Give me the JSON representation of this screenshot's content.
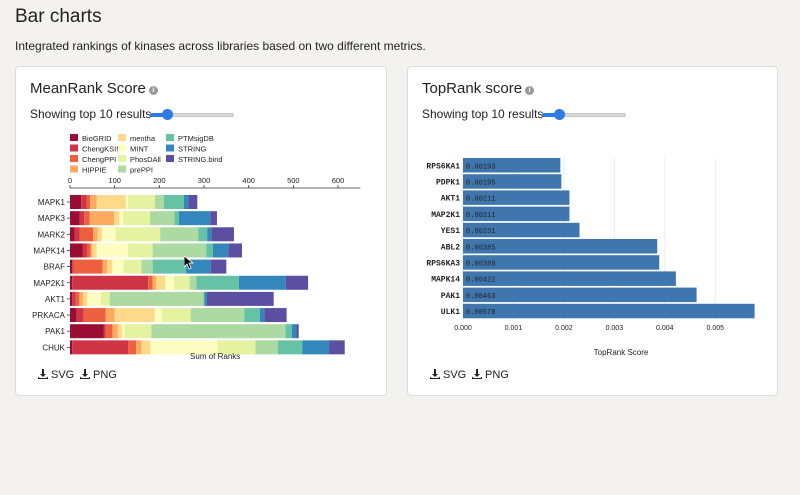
{
  "page": {
    "title": "Bar charts",
    "subtitle": "Integrated rankings of kinases across libraries based on two different metrics."
  },
  "left_card": {
    "title": "MeanRank Score",
    "results_text": "Showing top 10 results",
    "slider_value": 10,
    "download_svg": "SVG",
    "download_png": "PNG"
  },
  "right_card": {
    "title": "TopRank score",
    "results_text": "Showing top 10 results",
    "slider_value": 10,
    "download_svg": "SVG",
    "download_png": "PNG"
  },
  "chart_data": [
    {
      "type": "bar",
      "orientation": "horizontal",
      "stacked": true,
      "xlabel": "Sum of Ranks",
      "xlim": [
        0,
        650
      ],
      "xticks": [
        0,
        100,
        200,
        300,
        400,
        500,
        600
      ],
      "categories": [
        "MAPK1",
        "MAPK3",
        "MARK2",
        "MAPK14",
        "BRAF",
        "MAP2K1",
        "AKT1",
        "PRKACA",
        "PAK1",
        "CHUK"
      ],
      "legend_position": "top-left",
      "series": [
        {
          "name": "BioGRID",
          "color": "#9b0c35",
          "values": [
            25,
            22,
            10,
            28,
            5,
            5,
            5,
            15,
            75,
            5
          ]
        },
        {
          "name": "ChengKSIN",
          "color": "#cf3346",
          "values": [
            12,
            10,
            12,
            10,
            3,
            170,
            8,
            15,
            5,
            125
          ]
        },
        {
          "name": "ChengPPI",
          "color": "#ec6040",
          "values": [
            8,
            12,
            30,
            8,
            65,
            10,
            8,
            50,
            15,
            18
          ]
        },
        {
          "name": "HIPPIE",
          "color": "#fbaa5f",
          "values": [
            15,
            55,
            10,
            4,
            10,
            8,
            8,
            20,
            12,
            12
          ]
        },
        {
          "name": "mentha",
          "color": "#fdd98a",
          "values": [
            65,
            12,
            10,
            10,
            12,
            20,
            10,
            90,
            10,
            20
          ]
        },
        {
          "name": "MINT",
          "color": "#fefec2",
          "values": [
            5,
            8,
            30,
            70,
            25,
            20,
            30,
            15,
            5,
            150
          ]
        },
        {
          "name": "PhosDAll",
          "color": "#e5f3a1",
          "values": [
            60,
            60,
            100,
            55,
            40,
            35,
            20,
            65,
            60,
            85
          ]
        },
        {
          "name": "prePPI",
          "color": "#addaa2",
          "values": [
            20,
            55,
            85,
            120,
            25,
            15,
            210,
            120,
            300,
            50
          ]
        },
        {
          "name": "PTMsigDB",
          "color": "#66c2a5",
          "values": [
            45,
            10,
            20,
            15,
            75,
            95,
            2,
            35,
            15,
            55
          ]
        },
        {
          "name": "STRING",
          "color": "#3487bc",
          "values": [
            10,
            70,
            10,
            35,
            55,
            105,
            5,
            10,
            10,
            60
          ]
        },
        {
          "name": "STRING.bind",
          "color": "#5c4fa2",
          "values": [
            20,
            15,
            50,
            30,
            35,
            50,
            150,
            50,
            5,
            35
          ]
        }
      ]
    },
    {
      "type": "bar",
      "orientation": "horizontal",
      "xlabel": "TopRank Score",
      "xlim": [
        0,
        0.0058
      ],
      "xticks": [
        "0.000",
        "0.001",
        "0.002",
        "0.003",
        "0.004",
        "0.005"
      ],
      "categories": [
        "RPS6KA1",
        "PDPK1",
        "AKT1",
        "MAP2K1",
        "YES1",
        "ABL2",
        "RPS6KA3",
        "MAPK14",
        "PAK1",
        "ULK1"
      ],
      "values": [
        0.00193,
        0.00195,
        0.00211,
        0.00211,
        0.00231,
        0.00385,
        0.00389,
        0.00422,
        0.00463,
        0.00578
      ],
      "labels": [
        "0.00193",
        "0.00195",
        "0.00211",
        "0.00211",
        "0.00231",
        "0.00385",
        "0.00389",
        "0.00422",
        "0.00463",
        "0.00578"
      ],
      "color": "#3f76ad"
    }
  ]
}
